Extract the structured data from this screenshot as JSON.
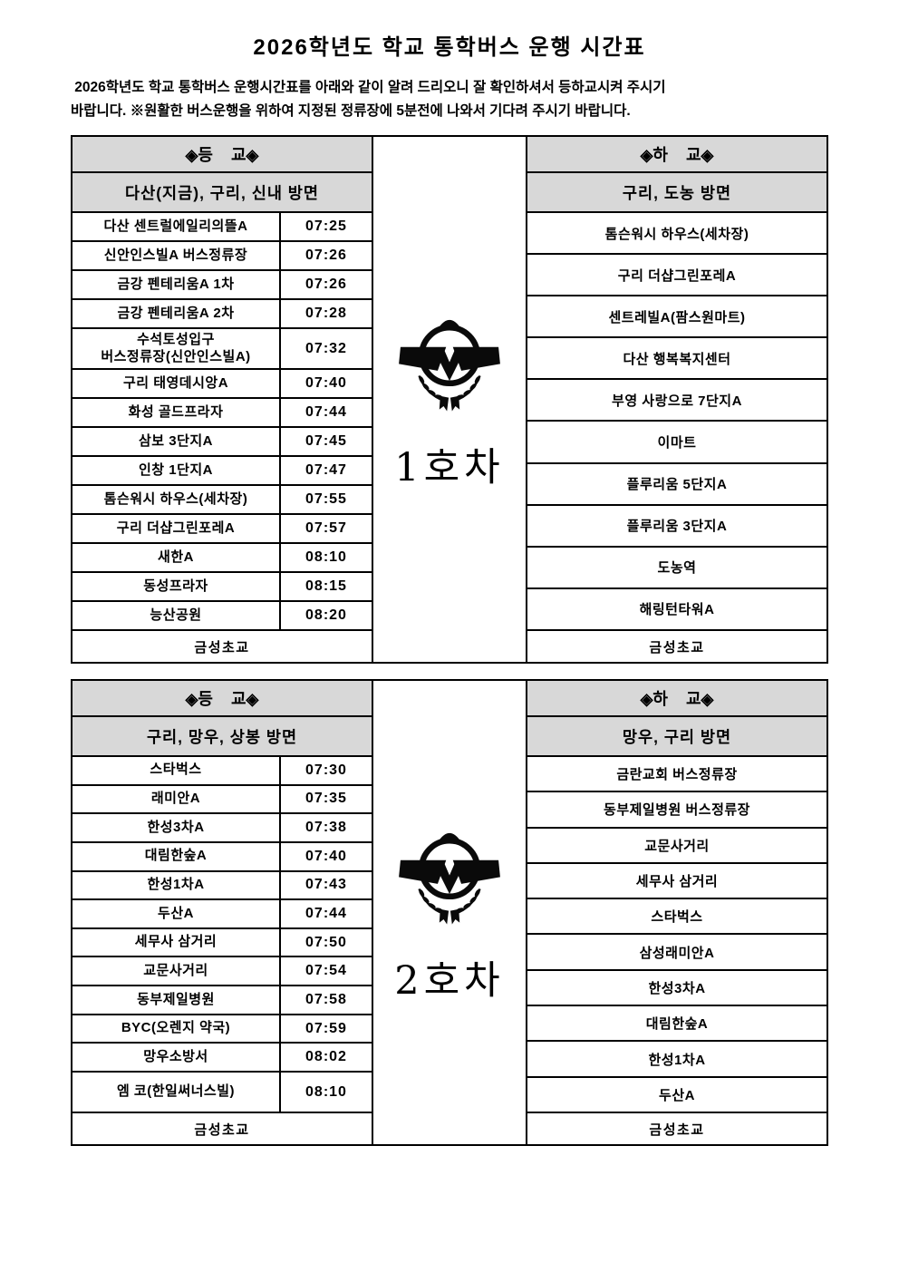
{
  "page": {
    "title": "2026학년도 학교 통학버스 운행 시간표",
    "intro_line1": " 2026학년도 학교 통학버스 운행시간표를 아래와 같이 알려 드리오니 잘 확인하셔서 등하교시켜 주시기",
    "intro_line2": "바랍니다. ※원활한 버스운행을 위하여 지정된 정류장에 5분전에 나와서 기다려 주시기 바랍니다."
  },
  "colors": {
    "header_bg": "#d8d8d8",
    "border": "#000000",
    "text": "#000000"
  },
  "buses": [
    {
      "bus_label": "1호차",
      "emblem": "school-emblem",
      "depart": {
        "header": "◈등    교◈",
        "direction": "다산(지금), 구리, 신내 방면",
        "stops": [
          {
            "name": "다산 센트럴에일리의뜰A",
            "time": "07:25"
          },
          {
            "name": "신안인스빌A 버스정류장",
            "time": "07:26"
          },
          {
            "name": "금강 펜테리움A 1차",
            "time": "07:26"
          },
          {
            "name": "금강 펜테리움A 2차",
            "time": "07:28"
          },
          {
            "name": "수석토성입구\n버스정류장(신안인스빌A)",
            "time": "07:32",
            "tall": true
          },
          {
            "name": "구리 태영데시앙A",
            "time": "07:40"
          },
          {
            "name": "화성 골드프라자",
            "time": "07:44"
          },
          {
            "name": "삼보 3단지A",
            "time": "07:45"
          },
          {
            "name": "인창 1단지A",
            "time": "07:47"
          },
          {
            "name": "톰슨워시 하우스(세차장)",
            "time": "07:55"
          },
          {
            "name": "구리 더샵그린포레A",
            "time": "07:57"
          },
          {
            "name": "새한A",
            "time": "08:10"
          },
          {
            "name": "동성프라자",
            "time": "08:15"
          },
          {
            "name": "능산공원",
            "time": "08:20"
          }
        ],
        "final_stop": "금성초교"
      },
      "dismiss": {
        "header": "◈하    교◈",
        "direction": "구리, 도농 방면",
        "stops": [
          "톰슨워시 하우스(세차장)",
          "구리 더샵그린포레A",
          "센트레빌A(팜스원마트)",
          "다산 행복복지센터",
          "부영 사랑으로 7단지A",
          "이마트",
          "플루리움 5단지A",
          "플루리움 3단지A",
          "도농역",
          "해링턴타워A"
        ],
        "final_stop": "금성초교"
      }
    },
    {
      "bus_label": "2호차",
      "emblem": "school-emblem",
      "depart": {
        "header": "◈등    교◈",
        "direction": "구리, 망우, 상봉 방면",
        "stops": [
          {
            "name": "스타벅스",
            "time": "07:30"
          },
          {
            "name": "래미안A",
            "time": "07:35"
          },
          {
            "name": "한성3차A",
            "time": "07:38"
          },
          {
            "name": "대림한숲A",
            "time": "07:40"
          },
          {
            "name": "한성1차A",
            "time": "07:43"
          },
          {
            "name": "두산A",
            "time": "07:44"
          },
          {
            "name": "세무사 삼거리",
            "time": "07:50"
          },
          {
            "name": "교문사거리",
            "time": "07:54"
          },
          {
            "name": "동부제일병원",
            "time": "07:58"
          },
          {
            "name": "BYC(오렌지 약국)",
            "time": "07:59"
          },
          {
            "name": "망우소방서",
            "time": "08:02"
          },
          {
            "name": "엠 코(한일써너스빌)",
            "time": "08:10",
            "tall": true
          }
        ],
        "final_stop": "금성초교"
      },
      "dismiss": {
        "header": "◈하    교◈",
        "direction": "망우, 구리 방면",
        "stops": [
          "금란교회 버스정류장",
          "동부제일병원 버스정류장",
          "교문사거리",
          "세무사 삼거리",
          "스타벅스",
          "삼성래미안A",
          "한성3차A",
          "대림한숲A",
          "한성1차A",
          "두산A"
        ],
        "final_stop": "금성초교"
      }
    }
  ]
}
